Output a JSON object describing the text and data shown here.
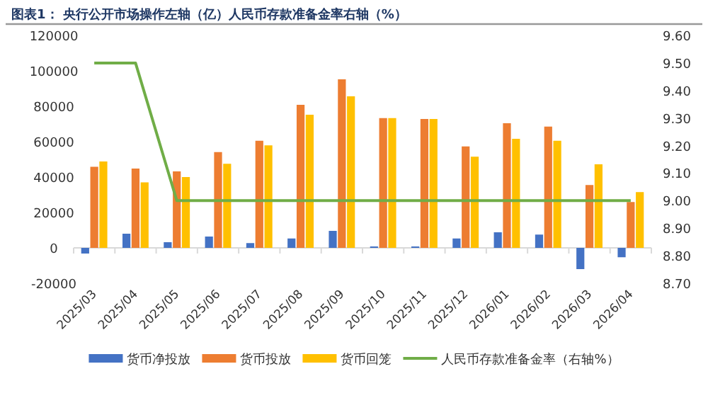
{
  "chart_data": {
    "type": "bar",
    "title": "图表1：  央行公开市场操作左轴（亿）人民币存款准备金率右轴（%）",
    "categories": [
      "2025/03",
      "2025/04",
      "2025/05",
      "2025/06",
      "2025/07",
      "2025/08",
      "2025/09",
      "2025/10",
      "2025/11",
      "2025/12",
      "2026/01",
      "2026/02",
      "2026/03",
      "2026/04"
    ],
    "series": [
      {
        "name": "货币净投放",
        "color": "#4472c4",
        "values": [
          -3200,
          8000,
          3200,
          6400,
          2700,
          5300,
          9600,
          800,
          800,
          5300,
          8800,
          7500,
          -12000,
          -5300
        ]
      },
      {
        "name": "货币投放",
        "color": "#ed7d31",
        "values": [
          45800,
          44800,
          43200,
          54100,
          60500,
          80800,
          95200,
          73300,
          72800,
          57300,
          70400,
          68500,
          35500,
          25900
        ]
      },
      {
        "name": "货币回笼",
        "color": "#ffc000",
        "values": [
          48800,
          37000,
          40000,
          47500,
          57900,
          75200,
          85600,
          73300,
          72800,
          51500,
          61600,
          60500,
          47200,
          31500
        ]
      },
      {
        "name": "人民币存款准备金率（右轴%）",
        "color": "#70ad47",
        "type": "line",
        "axis": "y2",
        "values": [
          9.5,
          9.5,
          9.0,
          9.0,
          9.0,
          9.0,
          9.0,
          9.0,
          9.0,
          9.0,
          9.0,
          9.0,
          9.0,
          9.0
        ]
      }
    ],
    "ylim": [
      -20000,
      120000
    ],
    "yticks": [
      -20000,
      0,
      20000,
      40000,
      60000,
      80000,
      100000,
      120000
    ],
    "y2lim": [
      8.7,
      9.6
    ],
    "y2ticks": [
      {
        "value": 8.7,
        "label": "8.70"
      },
      {
        "value": 8.8,
        "label": "8.80"
      },
      {
        "value": 8.9,
        "label": "8.90"
      },
      {
        "value": 9.0,
        "label": "9.00"
      },
      {
        "value": 9.1,
        "label": "9.10"
      },
      {
        "value": 9.2,
        "label": "9.20"
      },
      {
        "value": 9.3,
        "label": "9.30"
      },
      {
        "value": 9.4,
        "label": "9.40"
      },
      {
        "value": 9.5,
        "label": "9.50"
      },
      {
        "value": 9.6,
        "label": "9.60"
      }
    ],
    "legend": "bottom"
  }
}
